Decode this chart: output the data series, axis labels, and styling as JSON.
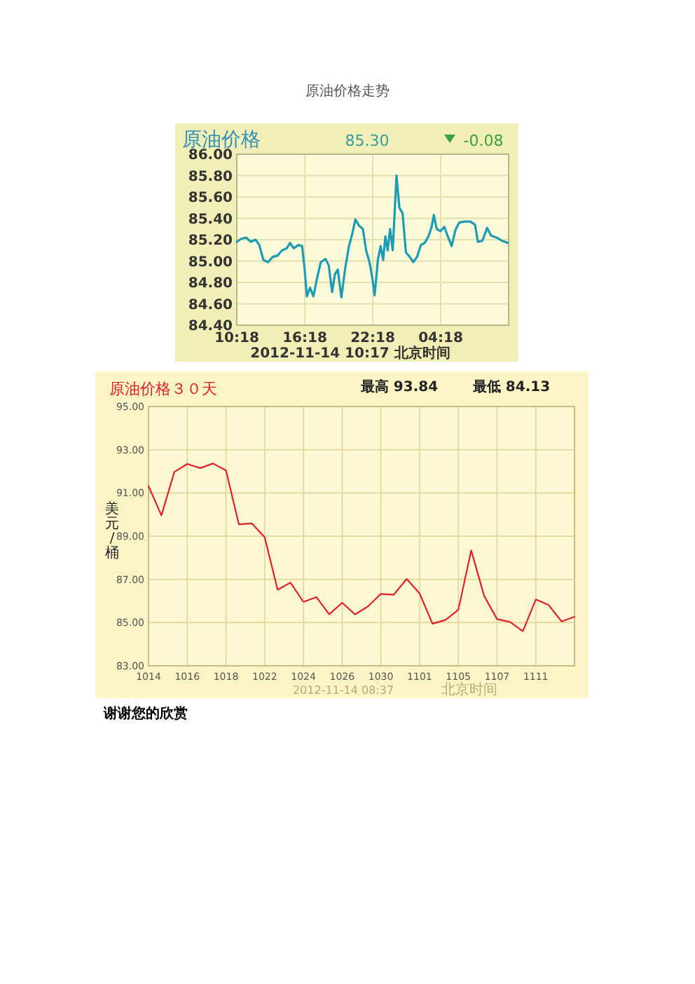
{
  "chart_data": [
    {
      "type": "line",
      "title": "原油价格",
      "annotations": [
        "原油价格走势",
        "85.30",
        "-0.08",
        "2012-11-14 10:17 北京时间"
      ],
      "xlim": [
        "2012-11-13T10:18",
        "2012-11-14T10:18"
      ],
      "xticks": [
        {
          "value": "2012-11-13T10:18",
          "label": "10:18"
        },
        {
          "value": "2012-11-13T16:18",
          "label": "16:18"
        },
        {
          "value": "2012-11-13T22:18",
          "label": "22:18"
        },
        {
          "value": "2012-11-14T04:18",
          "label": "04:18"
        }
      ],
      "ylim": [
        84.4,
        86.0
      ],
      "yticks": [
        {
          "value": 84.4,
          "label": "84.40"
        },
        {
          "value": 84.6,
          "label": "84.60"
        },
        {
          "value": 84.8,
          "label": "84.80"
        },
        {
          "value": 85.0,
          "label": "85.00"
        },
        {
          "value": 85.2,
          "label": "85.20"
        },
        {
          "value": 85.4,
          "label": "85.40"
        },
        {
          "value": 85.6,
          "label": "85.60"
        },
        {
          "value": 85.8,
          "label": "85.80"
        },
        {
          "value": 86.0,
          "label": "86.00"
        }
      ],
      "grid": true,
      "series": [
        {
          "color": "#1e9bb4",
          "x": [
            "2012-11-13T10:18",
            "2012-11-13T10:43",
            "2012-11-13T11:07",
            "2012-11-13T11:32",
            "2012-11-13T11:57",
            "2012-11-13T12:17",
            "2012-11-13T12:39",
            "2012-11-13T13:04",
            "2012-11-13T13:29",
            "2012-11-13T13:53",
            "2012-11-13T14:18",
            "2012-11-13T14:43",
            "2012-11-13T15:00",
            "2012-11-13T15:20",
            "2012-11-13T15:44",
            "2012-11-13T16:04",
            "2012-11-13T16:17",
            "2012-11-13T16:29",
            "2012-11-13T16:46",
            "2012-11-13T17:04",
            "2012-11-13T17:23",
            "2012-11-13T17:43",
            "2012-11-13T18:08",
            "2012-11-13T18:25",
            "2012-11-13T18:43",
            "2012-11-13T18:58",
            "2012-11-13T19:13",
            "2012-11-13T19:32",
            "2012-11-13T19:52",
            "2012-11-13T20:12",
            "2012-11-13T20:29",
            "2012-11-13T20:46",
            "2012-11-13T21:06",
            "2012-11-13T21:26",
            "2012-11-13T21:43",
            "2012-11-13T22:01",
            "2012-11-13T22:16",
            "2012-11-13T22:28",
            "2012-11-13T22:45",
            "2012-11-13T23:00",
            "2012-11-13T23:13",
            "2012-11-13T23:25",
            "2012-11-13T23:37",
            "2012-11-13T23:50",
            "2012-11-14T00:04",
            "2012-11-14T00:24",
            "2012-11-14T00:39",
            "2012-11-14T00:56",
            "2012-11-14T01:14",
            "2012-11-14T01:34",
            "2012-11-14T01:53",
            "2012-11-14T02:13",
            "2012-11-14T02:33",
            "2012-11-14T02:53",
            "2012-11-14T03:13",
            "2012-11-14T03:30",
            "2012-11-14T03:42",
            "2012-11-14T03:57",
            "2012-11-14T04:17",
            "2012-11-14T04:37",
            "2012-11-14T04:56",
            "2012-11-14T05:16",
            "2012-11-14T05:36",
            "2012-11-14T05:56",
            "2012-11-14T06:20",
            "2012-11-14T06:55",
            "2012-11-14T07:20",
            "2012-11-14T07:35",
            "2012-11-14T07:59",
            "2012-11-14T08:24",
            "2012-11-14T08:44",
            "2012-11-14T09:14",
            "2012-11-14T09:43",
            "2012-11-14T10:13"
          ],
          "values": [
            85.18,
            85.21,
            85.22,
            85.18,
            85.2,
            85.15,
            85.01,
            84.99,
            85.04,
            85.05,
            85.1,
            85.12,
            85.17,
            85.12,
            85.15,
            85.14,
            84.93,
            84.67,
            84.75,
            84.67,
            84.84,
            84.99,
            85.02,
            84.96,
            84.71,
            84.88,
            84.92,
            84.66,
            84.93,
            85.14,
            85.25,
            85.39,
            85.33,
            85.3,
            85.1,
            84.99,
            84.84,
            84.68,
            85.01,
            85.14,
            85.01,
            85.23,
            85.1,
            85.3,
            85.1,
            85.8,
            85.5,
            85.45,
            85.08,
            85.04,
            84.99,
            85.04,
            85.15,
            85.17,
            85.23,
            85.32,
            85.43,
            85.3,
            85.28,
            85.32,
            85.23,
            85.14,
            85.29,
            85.36,
            85.37,
            85.37,
            85.34,
            85.18,
            85.19,
            85.31,
            85.24,
            85.22,
            85.19,
            85.17
          ]
        }
      ]
    },
    {
      "type": "line",
      "title": "原油价格３０天",
      "ylabel": "美元/桶",
      "annotations": [
        "最高 93.84",
        "最低 84.13",
        "2012-11-14 08:37",
        "北京时间",
        "谢谢您的欣赏"
      ],
      "categories": [
        "1014",
        null,
        null,
        "1016",
        null,
        null,
        "1018",
        null,
        null,
        "1022",
        null,
        null,
        "1024",
        null,
        null,
        "1026",
        null,
        null,
        "1030",
        null,
        null,
        "1101",
        null,
        null,
        "1105",
        null,
        null,
        "1107",
        null,
        null,
        "1111",
        null,
        null,
        null
      ],
      "ylim": [
        83,
        95
      ],
      "yticks": [
        {
          "value": 83,
          "label": "83.00"
        },
        {
          "value": 85,
          "label": "85.00"
        },
        {
          "value": 87,
          "label": "87.00"
        },
        {
          "value": 89,
          "label": "89.00"
        },
        {
          "value": 91,
          "label": "91.00"
        },
        {
          "value": 93,
          "label": "93.00"
        },
        {
          "value": 95,
          "label": "95.00"
        }
      ],
      "grid": true,
      "series": [
        {
          "color": "#e4202a",
          "values": [
            91.32,
            89.96,
            91.97,
            92.34,
            92.15,
            92.36,
            92.04,
            89.55,
            89.59,
            88.95,
            86.52,
            86.85,
            85.96,
            86.18,
            85.38,
            85.92,
            85.38,
            85.75,
            86.33,
            86.29,
            87.02,
            86.35,
            84.95,
            85.12,
            85.59,
            88.34,
            86.24,
            85.16,
            85.03,
            84.6,
            86.07,
            85.81,
            85.05,
            85.27
          ]
        }
      ]
    }
  ]
}
